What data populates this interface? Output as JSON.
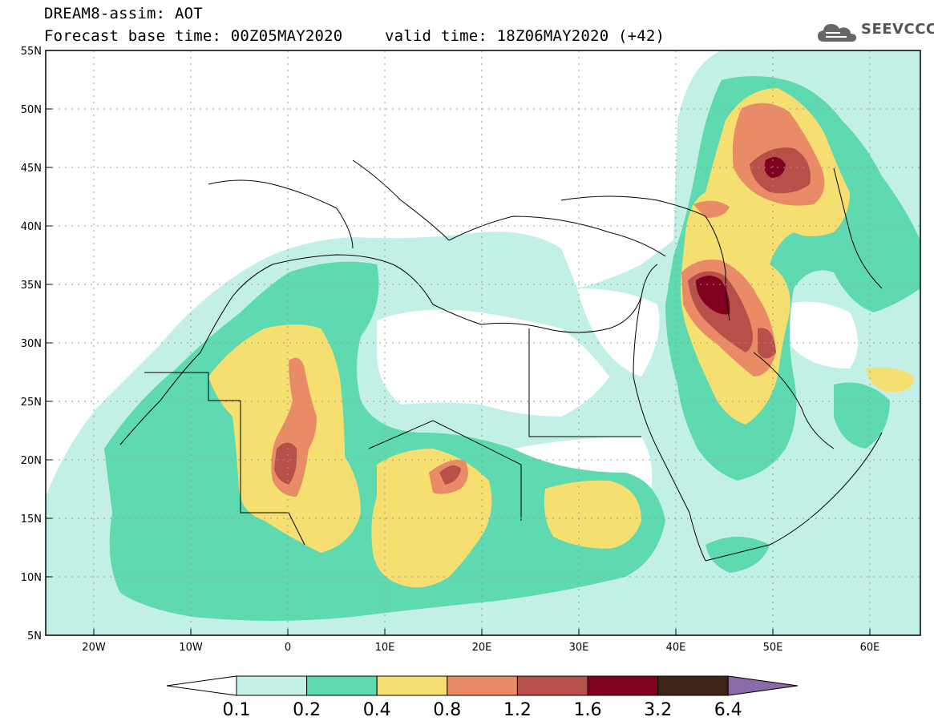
{
  "header": {
    "model_line": "DREAM8-assim: AOT",
    "base_time_line": "Forecast base time: 00Z05MAY2020",
    "valid_time_line": "valid time: 18Z06MAY2020 (+42)"
  },
  "logo": {
    "text": "SEEVCCC",
    "icon": "cloud-icon"
  },
  "map": {
    "lat_labels": [
      "55N",
      "50N",
      "45N",
      "40N",
      "35N",
      "30N",
      "25N",
      "20N",
      "15N",
      "10N",
      "5N"
    ],
    "lon_labels": [
      "20W",
      "10W",
      "0",
      "10E",
      "20E",
      "30E",
      "40E",
      "50E",
      "60E"
    ],
    "lon_range": [
      -25,
      65
    ],
    "lat_range": [
      5,
      55
    ],
    "grid": "dotted"
  },
  "colorbar": {
    "labels": [
      "0.1",
      "0.2",
      "0.4",
      "0.8",
      "1.2",
      "1.6",
      "3.2",
      "6.4"
    ],
    "colors": [
      "#ffffff",
      "#c3f0e6",
      "#5ed9b0",
      "#f4df70",
      "#e88b66",
      "#b8504a",
      "#800020",
      "#3e2415",
      "#8a6aa8"
    ]
  }
}
